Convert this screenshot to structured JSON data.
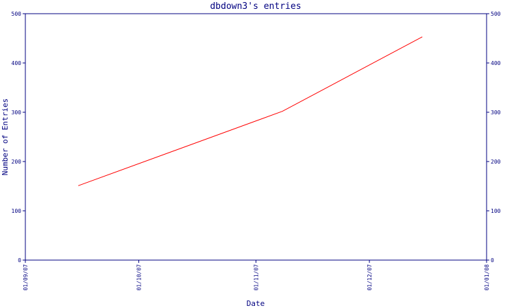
{
  "chart_data": {
    "type": "line",
    "title": "dbdown3's entries",
    "xlabel": "Date",
    "ylabel": "Number of Entries",
    "x_tick_labels": [
      "01/09/07",
      "01/10/07",
      "01/11/07",
      "01/12/07",
      "01/01/08"
    ],
    "x_ticks": [
      "2007-09-01",
      "2007-10-01",
      "2007-11-01",
      "2007-12-01",
      "2008-01-01"
    ],
    "xlim": [
      "2007-09-01",
      "2008-01-01"
    ],
    "y_ticks": [
      0,
      100,
      200,
      300,
      400,
      500
    ],
    "ylim": [
      0,
      500
    ],
    "right_axis": true,
    "grid": false,
    "colors": {
      "axis": "#000080",
      "line": "#ff0000",
      "text": "#000080"
    },
    "series": [
      {
        "x": [
          "2007-09-15",
          "2007-11-08",
          "2007-12-15"
        ],
        "y": [
          151,
          302,
          453
        ]
      }
    ]
  }
}
